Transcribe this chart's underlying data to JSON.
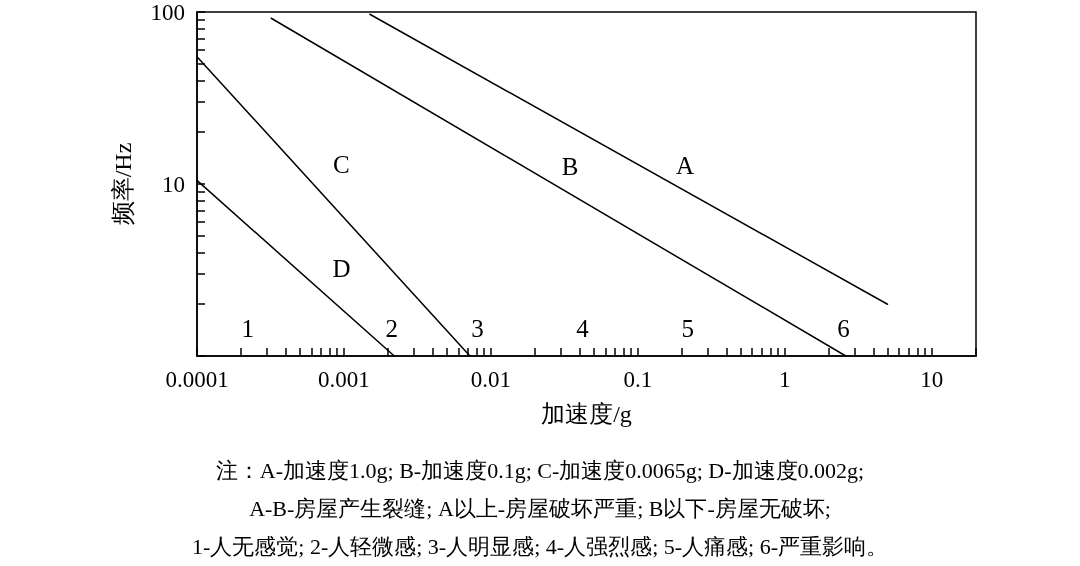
{
  "chart_data": {
    "type": "line",
    "xlabel": "加速度/g",
    "ylabel": "频率/Hz",
    "log": "xy",
    "grid": false,
    "legend": false,
    "marker": "none",
    "line_style": "solid",
    "xlim": [
      0.0001,
      20
    ],
    "ylim": [
      1,
      100
    ],
    "xticks": [
      0.0001,
      {
        "value": 0.0002,
        "label": null
      },
      {
        "value": 0.0003,
        "label": null
      },
      {
        "value": 0.0004,
        "label": null
      },
      {
        "value": 0.0005,
        "label": null
      },
      {
        "value": 0.0006,
        "label": null
      },
      {
        "value": 0.0007,
        "label": null
      },
      {
        "value": 0.0008,
        "label": null
      },
      {
        "value": 0.0009,
        "label": null
      },
      0.001,
      {
        "value": 0.002,
        "label": null
      },
      {
        "value": 0.003,
        "label": null
      },
      {
        "value": 0.004,
        "label": null
      },
      {
        "value": 0.005,
        "label": null
      },
      {
        "value": 0.006,
        "label": null
      },
      {
        "value": 0.007,
        "label": null
      },
      {
        "value": 0.008,
        "label": null
      },
      {
        "value": 0.009,
        "label": null
      },
      0.01,
      {
        "value": 0.02,
        "label": null
      },
      {
        "value": 0.03,
        "label": null
      },
      {
        "value": 0.04,
        "label": null
      },
      {
        "value": 0.05,
        "label": null
      },
      {
        "value": 0.06,
        "label": null
      },
      {
        "value": 0.07,
        "label": null
      },
      {
        "value": 0.08,
        "label": null
      },
      {
        "value": 0.09,
        "label": null
      },
      0.1,
      {
        "value": 0.2,
        "label": null
      },
      {
        "value": 0.3,
        "label": null
      },
      {
        "value": 0.4,
        "label": null
      },
      {
        "value": 0.5,
        "label": null
      },
      {
        "value": 0.6,
        "label": null
      },
      {
        "value": 0.7,
        "label": null
      },
      {
        "value": 0.8,
        "label": null
      },
      {
        "value": 0.9,
        "label": null
      },
      1,
      {
        "value": 2,
        "label": null
      },
      {
        "value": 3,
        "label": null
      },
      {
        "value": 4,
        "label": null
      },
      {
        "value": 5,
        "label": null
      },
      {
        "value": 6,
        "label": null
      },
      {
        "value": 7,
        "label": null
      },
      {
        "value": 8,
        "label": null
      },
      {
        "value": 9,
        "label": null
      },
      10,
      {
        "value": 20,
        "label": null
      }
    ],
    "yticks": [
      {
        "value": 1,
        "label": null
      },
      {
        "value": 2,
        "label": null
      },
      {
        "value": 3,
        "label": null
      },
      {
        "value": 4,
        "label": null
      },
      {
        "value": 5,
        "label": null
      },
      {
        "value": 6,
        "label": null
      },
      {
        "value": 7,
        "label": null
      },
      {
        "value": 8,
        "label": null
      },
      {
        "value": 9,
        "label": null
      },
      10,
      {
        "value": 20,
        "label": null
      },
      {
        "value": 30,
        "label": null
      },
      {
        "value": 40,
        "label": null
      },
      {
        "value": 50,
        "label": null
      },
      {
        "value": 60,
        "label": null
      },
      {
        "value": 70,
        "label": null
      },
      {
        "value": 80,
        "label": null
      },
      {
        "value": 90,
        "label": null
      },
      100
    ],
    "series": [
      {
        "name": "A",
        "color": "#000000",
        "x": [
          0.0015,
          5
        ],
        "values": [
          97,
          2
        ]
      },
      {
        "name": "B",
        "color": "#000000",
        "x": [
          0.00032,
          2.6
        ],
        "values": [
          92,
          1
        ]
      },
      {
        "name": "C",
        "color": "#000000",
        "x": [
          0.0001,
          0.0072
        ],
        "values": [
          55,
          1
        ]
      },
      {
        "name": "D",
        "color": "#000000",
        "x": [
          0.0001,
          0.0022
        ],
        "values": [
          10.5,
          1
        ]
      }
    ],
    "annotations": [
      "1",
      "2",
      "3",
      "4",
      "5",
      "6",
      "注：A-加速度1.0g; B-加速度0.1g; C-加速度0.0065g; D-加速度0.002g;",
      "A-B-房屋产生裂缝; A以上-房屋破坏严重; B以下-房屋无破坏;",
      "1-人无感觉; 2-人轻微感; 3-人明显感; 4-人强烈感; 5-人痛感; 6-严重影响。"
    ]
  }
}
